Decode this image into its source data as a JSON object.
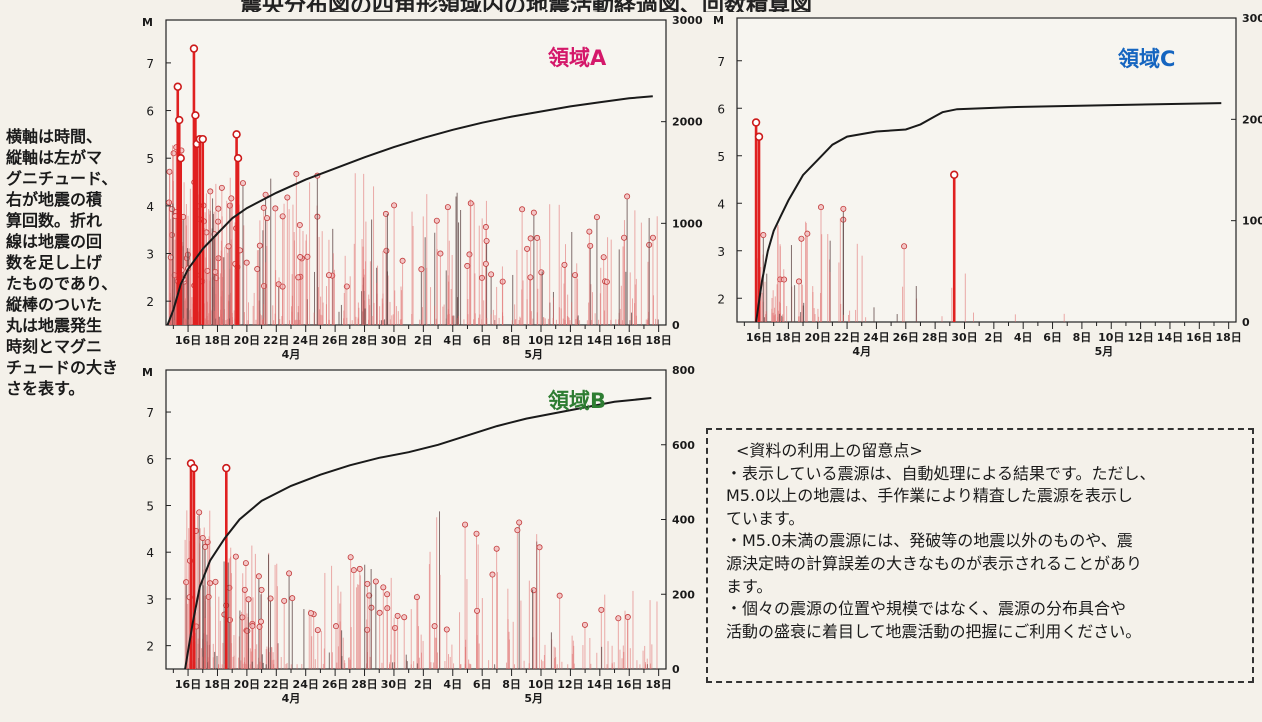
{
  "title": "震央分布図の四角形領域内の地震活動経過図、回数積算図",
  "side_note": [
    "横軸は時間、",
    "縦軸は左がマ",
    "グニチュード、",
    "右が地震の積",
    "算回数。折れ",
    "線は地震の回",
    "数を足し上げ",
    "たものであり、",
    "縦棒のついた",
    "丸は地震発生",
    "時刻とマグニ",
    "チュードの大き",
    "さを表す。"
  ],
  "notes": {
    "heading": "<資料の利用上の留意点>",
    "lines": [
      "・表示している震源は、自動処理による結果です。ただし、",
      "M5.0以上の地震は、手作業により精査した震源を表示し",
      "ています。",
      "・M5.0未満の震源には、発破等の地震以外のものや、震",
      "源決定時の計算誤差の大きなものが表示されることがあり",
      "ます。",
      "・個々の震源の位置や規模ではなく、震源の分布具合や",
      "活動の盛衰に着目して地震活動の把握にご利用ください。"
    ]
  },
  "colors": {
    "region_a": "#d4186a",
    "region_b": "#2e7d32",
    "region_c": "#1565c0",
    "stem": "#e06a6a",
    "stem_large": "#e02020",
    "stem_dark": "#5a4040",
    "cumulative": "#1a1a1a"
  },
  "chart_data": [
    {
      "type": "scatter",
      "region": "領域A",
      "y_label": "M",
      "x_tick_labels": [
        "16日",
        "18日",
        "20日",
        "22日",
        "24日",
        "26日",
        "28日",
        "30日",
        "2日",
        "4日",
        "6日",
        "8日",
        "10日",
        "12日",
        "14日",
        "16日",
        "18日"
      ],
      "month_labels": [
        "4月",
        "5月"
      ],
      "y_ticks": [
        2,
        3,
        4,
        5,
        6,
        7
      ],
      "y_range": [
        1.5,
        7.9
      ],
      "right_ticks": [
        0,
        1000,
        2000,
        3000
      ],
      "right_range": [
        0,
        3000
      ],
      "x_range": [
        14.5,
        48.5
      ],
      "large_events": [
        {
          "x": 15.3,
          "m": 6.5
        },
        {
          "x": 15.4,
          "m": 5.8
        },
        {
          "x": 15.5,
          "m": 5.0
        },
        {
          "x": 16.4,
          "m": 7.3
        },
        {
          "x": 16.5,
          "m": 5.9
        },
        {
          "x": 16.6,
          "m": 5.3
        },
        {
          "x": 16.8,
          "m": 5.4
        },
        {
          "x": 17.0,
          "m": 5.4
        },
        {
          "x": 19.3,
          "m": 5.5
        },
        {
          "x": 19.4,
          "m": 5.0
        }
      ],
      "cumulative": [
        [
          14.6,
          0
        ],
        [
          15.0,
          150
        ],
        [
          15.5,
          400
        ],
        [
          16.0,
          550
        ],
        [
          17.0,
          750
        ],
        [
          18.0,
          900
        ],
        [
          19.0,
          1050
        ],
        [
          20.0,
          1150
        ],
        [
          22.0,
          1300
        ],
        [
          24.0,
          1430
        ],
        [
          26.0,
          1540
        ],
        [
          28.0,
          1650
        ],
        [
          30.0,
          1750
        ],
        [
          32.0,
          1840
        ],
        [
          34.0,
          1920
        ],
        [
          36.0,
          1990
        ],
        [
          38.0,
          2050
        ],
        [
          40.0,
          2100
        ],
        [
          42.0,
          2150
        ],
        [
          44.0,
          2190
        ],
        [
          46.0,
          2230
        ],
        [
          47.6,
          2250
        ]
      ]
    },
    {
      "type": "scatter",
      "region": "領域B",
      "y_label": "M",
      "x_tick_labels": [
        "16日",
        "18日",
        "20日",
        "22日",
        "24日",
        "26日",
        "28日",
        "30日",
        "2日",
        "4日",
        "6日",
        "8日",
        "10日",
        "12日",
        "14日",
        "16日",
        "18日"
      ],
      "month_labels": [
        "4月",
        "5月"
      ],
      "y_ticks": [
        2,
        3,
        4,
        5,
        6,
        7
      ],
      "y_range": [
        1.5,
        7.9
      ],
      "right_ticks": [
        0,
        200,
        400,
        600,
        800
      ],
      "right_range": [
        0,
        800
      ],
      "x_range": [
        14.5,
        48.5
      ],
      "large_events": [
        {
          "x": 16.2,
          "m": 5.9
        },
        {
          "x": 16.4,
          "m": 5.8
        },
        {
          "x": 18.6,
          "m": 5.8
        }
      ],
      "cumulative": [
        [
          15.8,
          0
        ],
        [
          16.3,
          120
        ],
        [
          16.8,
          220
        ],
        [
          17.5,
          290
        ],
        [
          18.5,
          350
        ],
        [
          19.5,
          400
        ],
        [
          21.0,
          450
        ],
        [
          23.0,
          490
        ],
        [
          25.0,
          520
        ],
        [
          27.0,
          545
        ],
        [
          29.0,
          565
        ],
        [
          31.0,
          580
        ],
        [
          33.0,
          600
        ],
        [
          35.0,
          625
        ],
        [
          37.0,
          650
        ],
        [
          39.0,
          670
        ],
        [
          41.0,
          685
        ],
        [
          43.0,
          700
        ],
        [
          45.0,
          715
        ],
        [
          47.5,
          725
        ]
      ]
    },
    {
      "type": "scatter",
      "region": "領域C",
      "y_label": "M",
      "x_tick_labels": [
        "16日",
        "18日",
        "20日",
        "22日",
        "24日",
        "26日",
        "28日",
        "30日",
        "2日",
        "4日",
        "6日",
        "8日",
        "10日",
        "12日",
        "14日",
        "16日",
        "18日"
      ],
      "month_labels": [
        "4月",
        "5月"
      ],
      "y_ticks": [
        2,
        3,
        4,
        5,
        6,
        7
      ],
      "y_range": [
        1.5,
        7.9
      ],
      "right_ticks": [
        0,
        100,
        200,
        300
      ],
      "right_range": [
        0,
        300
      ],
      "x_range": [
        14.5,
        48.5
      ],
      "large_events": [
        {
          "x": 15.8,
          "m": 5.7
        },
        {
          "x": 16.0,
          "m": 5.4
        },
        {
          "x": 29.3,
          "m": 4.6
        }
      ],
      "cumulative": [
        [
          15.8,
          0
        ],
        [
          16.2,
          40
        ],
        [
          16.6,
          70
        ],
        [
          17.0,
          90
        ],
        [
          17.5,
          105
        ],
        [
          18.0,
          120
        ],
        [
          19.0,
          145
        ],
        [
          20.0,
          160
        ],
        [
          21.0,
          175
        ],
        [
          22.0,
          183
        ],
        [
          24.0,
          188
        ],
        [
          26.0,
          190
        ],
        [
          27.0,
          195
        ],
        [
          28.0,
          203
        ],
        [
          28.5,
          207
        ],
        [
          29.5,
          210
        ],
        [
          33.0,
          212
        ],
        [
          40.0,
          214
        ],
        [
          47.5,
          216
        ]
      ]
    }
  ]
}
